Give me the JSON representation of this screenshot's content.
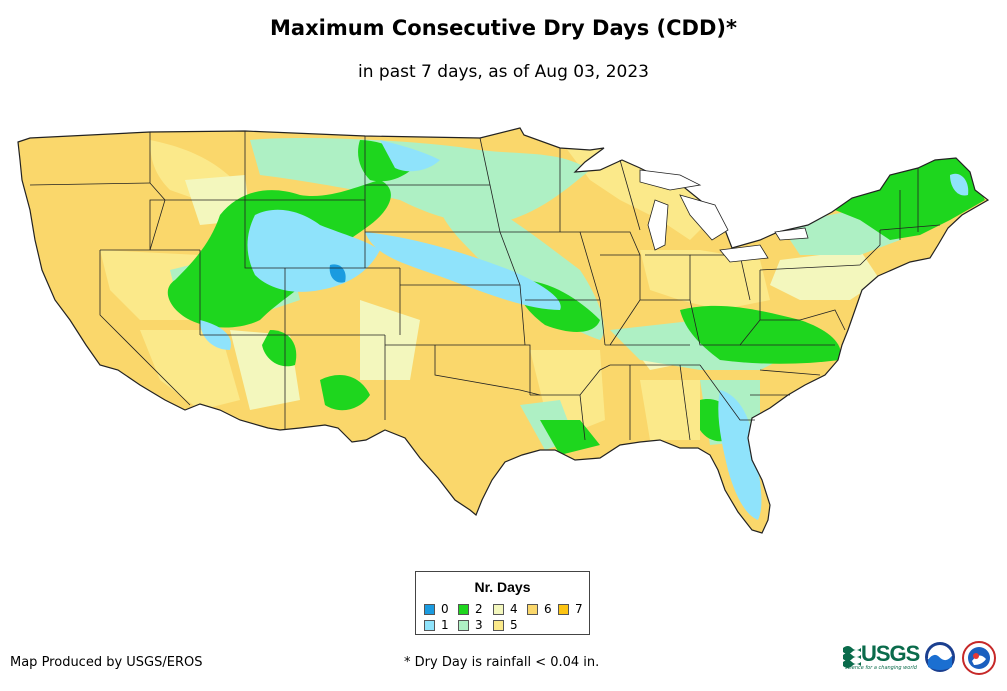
{
  "title": "Maximum Consecutive Dry Days (CDD)*",
  "subtitle": "in past 7 days, as of Aug 03, 2023",
  "legend": {
    "title": "Nr. Days",
    "items": [
      {
        "label": "0",
        "color": "#1a9be0"
      },
      {
        "label": "1",
        "color": "#8fe3fb"
      },
      {
        "label": "2",
        "color": "#1ed61e"
      },
      {
        "label": "3",
        "color": "#aef0c4"
      },
      {
        "label": "4",
        "color": "#f3f7bd"
      },
      {
        "label": "5",
        "color": "#fbe98a"
      },
      {
        "label": "6",
        "color": "#fad76b"
      },
      {
        "label": "7",
        "color": "#fcc412"
      }
    ]
  },
  "footer": {
    "producer": "Map Produced by USGS/EROS",
    "note": "* Dry Day is rainfall < 0.04 in."
  },
  "logos": {
    "usgs": "USGS",
    "usgs_tagline": "science for a changing world",
    "noaa": "noaa-logo",
    "nws": "nws-logo"
  },
  "colors": {
    "border": "#222222",
    "background": "#ffffff"
  }
}
